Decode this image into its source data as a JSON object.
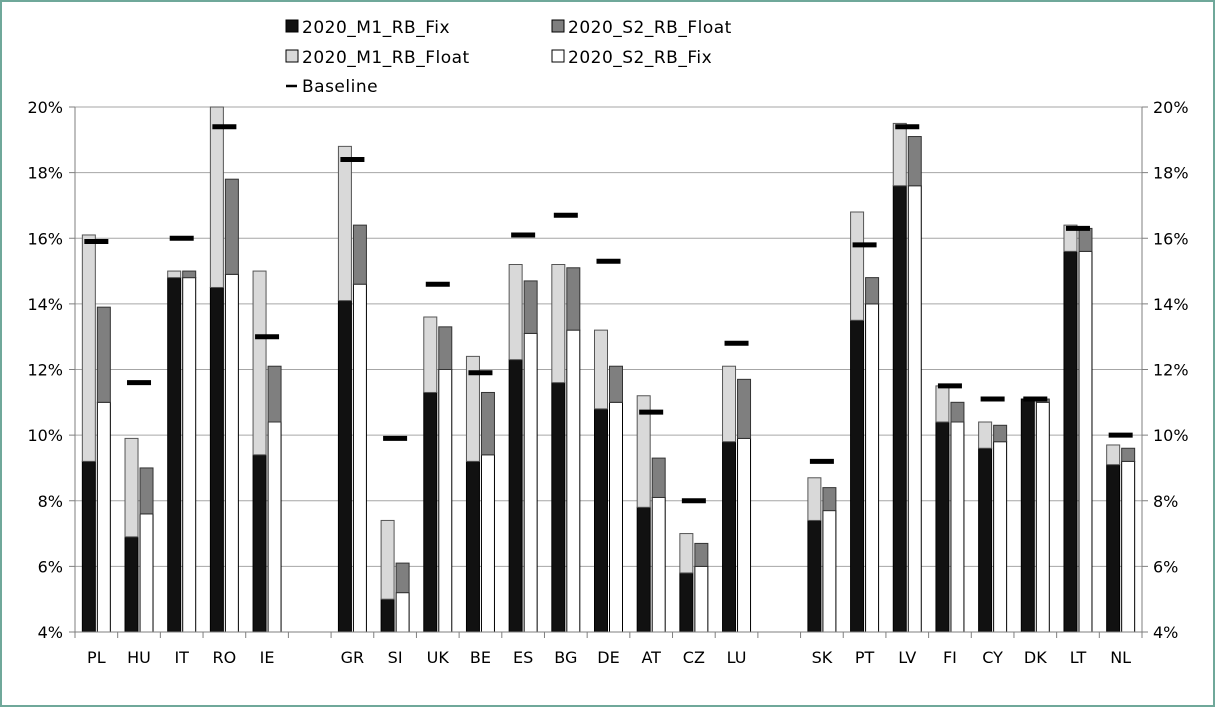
{
  "chart_data": {
    "type": "bar",
    "stacked": true,
    "ylim": [
      4,
      20
    ],
    "yticks": [
      "4%",
      "6%",
      "8%",
      "10%",
      "12%",
      "14%",
      "16%",
      "18%",
      "20%"
    ],
    "grid": true,
    "legend_position": "top",
    "legend": [
      {
        "name": "2020_M1_RB_Fix",
        "key": "m1fix",
        "color": "#111111"
      },
      {
        "name": "2020_S2_RB_Float",
        "key": "s2float",
        "color": "#7f7f7f"
      },
      {
        "name": "2020_M1_RB_Float",
        "key": "m1float",
        "color": "#d9d9d9"
      },
      {
        "name": "2020_S2_RB_Fix",
        "key": "s2fix",
        "color": "#ffffff"
      },
      {
        "name": "Baseline",
        "key": "baseline",
        "color": "#000000"
      }
    ],
    "categories": [
      {
        "name": "PL",
        "group": 0,
        "m1fix": 9.2,
        "m1float": 16.1,
        "s2fix": 11.0,
        "s2float": 13.9,
        "baseline": 15.9
      },
      {
        "name": "HU",
        "group": 0,
        "m1fix": 6.9,
        "m1float": 9.9,
        "s2fix": 7.6,
        "s2float": 9.0,
        "baseline": 11.6
      },
      {
        "name": "IT",
        "group": 0,
        "m1fix": 14.8,
        "m1float": 15.0,
        "s2fix": 14.8,
        "s2float": 15.0,
        "baseline": 16.0
      },
      {
        "name": "RO",
        "group": 0,
        "m1fix": 14.5,
        "m1float": 20.0,
        "s2fix": 14.9,
        "s2float": 17.8,
        "baseline": 19.4
      },
      {
        "name": "IE",
        "group": 0,
        "m1fix": 9.4,
        "m1float": 15.0,
        "s2fix": 10.4,
        "s2float": 12.1,
        "baseline": 13.0
      },
      {
        "name": "GR",
        "group": 1,
        "m1fix": 14.1,
        "m1float": 18.8,
        "s2fix": 14.6,
        "s2float": 16.4,
        "baseline": 18.4
      },
      {
        "name": "SI",
        "group": 1,
        "m1fix": 5.0,
        "m1float": 7.4,
        "s2fix": 5.2,
        "s2float": 6.1,
        "baseline": 9.9
      },
      {
        "name": "UK",
        "group": 1,
        "m1fix": 11.3,
        "m1float": 13.6,
        "s2fix": 12.0,
        "s2float": 13.3,
        "baseline": 14.6
      },
      {
        "name": "BE",
        "group": 1,
        "m1fix": 9.2,
        "m1float": 12.4,
        "s2fix": 9.4,
        "s2float": 11.3,
        "baseline": 11.9
      },
      {
        "name": "ES",
        "group": 1,
        "m1fix": 12.3,
        "m1float": 15.2,
        "s2fix": 13.1,
        "s2float": 14.7,
        "baseline": 16.1
      },
      {
        "name": "BG",
        "group": 1,
        "m1fix": 11.6,
        "m1float": 15.2,
        "s2fix": 13.2,
        "s2float": 15.1,
        "baseline": 16.7
      },
      {
        "name": "DE",
        "group": 1,
        "m1fix": 10.8,
        "m1float": 13.2,
        "s2fix": 11.0,
        "s2float": 12.1,
        "baseline": 15.3
      },
      {
        "name": "AT",
        "group": 1,
        "m1fix": 7.8,
        "m1float": 11.2,
        "s2fix": 8.1,
        "s2float": 9.3,
        "baseline": 10.7
      },
      {
        "name": "CZ",
        "group": 1,
        "m1fix": 5.8,
        "m1float": 7.0,
        "s2fix": 6.0,
        "s2float": 6.7,
        "baseline": 8.0
      },
      {
        "name": "LU",
        "group": 1,
        "m1fix": 9.8,
        "m1float": 12.1,
        "s2fix": 9.9,
        "s2float": 11.7,
        "baseline": 12.8
      },
      {
        "name": "SK",
        "group": 2,
        "m1fix": 7.4,
        "m1float": 8.7,
        "s2fix": 7.7,
        "s2float": 8.4,
        "baseline": 9.2
      },
      {
        "name": "PT",
        "group": 2,
        "m1fix": 13.5,
        "m1float": 16.8,
        "s2fix": 14.0,
        "s2float": 14.8,
        "baseline": 15.8
      },
      {
        "name": "LV",
        "group": 2,
        "m1fix": 17.6,
        "m1float": 19.5,
        "s2fix": 17.6,
        "s2float": 19.1,
        "baseline": 19.4
      },
      {
        "name": "FI",
        "group": 2,
        "m1fix": 10.4,
        "m1float": 11.5,
        "s2fix": 10.4,
        "s2float": 11.0,
        "baseline": 11.5
      },
      {
        "name": "CY",
        "group": 2,
        "m1fix": 9.6,
        "m1float": 10.4,
        "s2fix": 9.8,
        "s2float": 10.3,
        "baseline": 11.1
      },
      {
        "name": "DK",
        "group": 2,
        "m1fix": 11.1,
        "m1float": 11.1,
        "s2fix": 11.0,
        "s2float": 11.1,
        "baseline": 11.1
      },
      {
        "name": "LT",
        "group": 2,
        "m1fix": 15.6,
        "m1float": 16.4,
        "s2fix": 15.6,
        "s2float": 16.3,
        "baseline": 16.3
      },
      {
        "name": "NL",
        "group": 2,
        "m1fix": 9.1,
        "m1float": 9.7,
        "s2fix": 9.2,
        "s2float": 9.6,
        "baseline": 10.0
      }
    ]
  }
}
